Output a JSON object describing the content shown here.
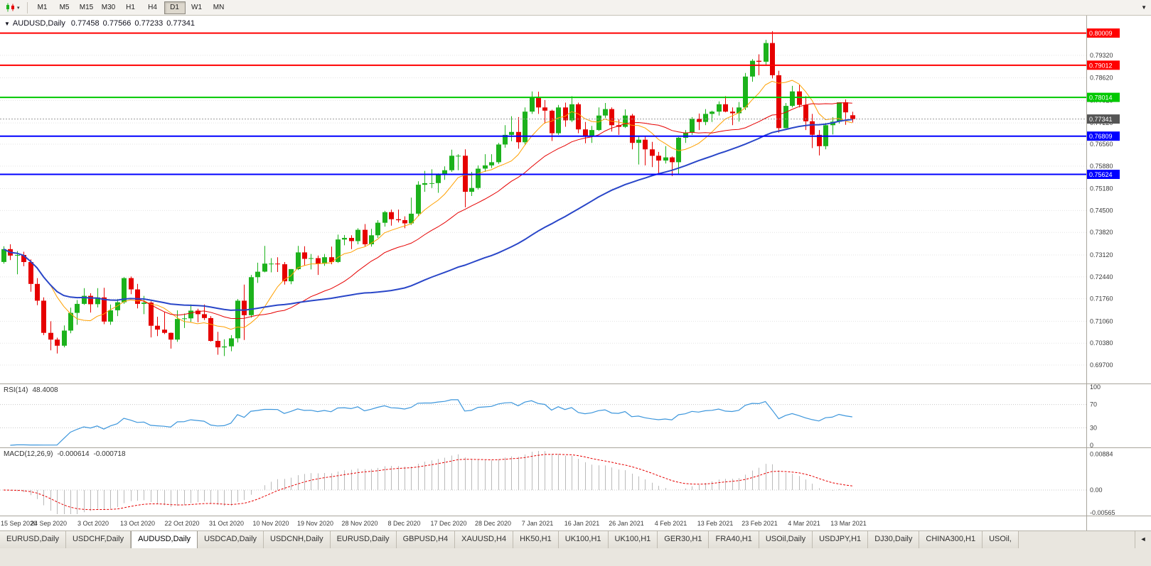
{
  "toolbar": {
    "chart_type_icon": "candlestick-chart",
    "dropdown_icon": "▾",
    "overflow_icon": "▼",
    "timeframes": [
      {
        "label": "M1",
        "active": false
      },
      {
        "label": "M5",
        "active": false
      },
      {
        "label": "M15",
        "active": false
      },
      {
        "label": "M30",
        "active": false
      },
      {
        "label": "H1",
        "active": false
      },
      {
        "label": "H4",
        "active": false
      },
      {
        "label": "D1",
        "active": true
      },
      {
        "label": "W1",
        "active": false
      },
      {
        "label": "MN",
        "active": false
      }
    ]
  },
  "chart": {
    "header": {
      "collapse_icon": "▼",
      "symbol": "AUDUSD,Daily",
      "open": "0.77458",
      "high": "0.77566",
      "low": "0.77233",
      "close": "0.77341"
    },
    "colors": {
      "up": "#1CB21C",
      "down": "#E60000",
      "grid": "#E3E3E3",
      "price_line_dots": "#9A9A9A"
    },
    "price_axis_labels": [
      "0.79320",
      "0.78620",
      "0.77920",
      "0.77220",
      "0.76560",
      "0.75880",
      "0.75180",
      "0.74500",
      "0.73820",
      "0.73120",
      "0.72440",
      "0.71760",
      "0.71060",
      "0.70380",
      "0.69700"
    ],
    "hlines": [
      {
        "price": 0.80009,
        "label": "0.80009",
        "color": "#FF0000"
      },
      {
        "price": 0.79012,
        "label": "0.79012",
        "color": "#FF0000"
      },
      {
        "price": 0.78014,
        "label": "0.78014",
        "color": "#00C800"
      },
      {
        "price": 0.76809,
        "label": "0.76809",
        "color": "#0000FF"
      },
      {
        "price": 0.75624,
        "label": "0.75624",
        "color": "#0000FF"
      }
    ],
    "current_price": {
      "label": "0.77341",
      "value": 0.77341,
      "tag_color": "#555555"
    },
    "date_labels": [
      "15 Sep 2020",
      "24 Sep 2020",
      "3 Oct 2020",
      "13 Oct 2020",
      "22 Oct 2020",
      "31 Oct 2020",
      "10 Nov 2020",
      "19 Nov 2020",
      "28 Nov 2020",
      "8 Dec 2020",
      "17 Dec 2020",
      "28 Dec 2020",
      "7 Jan 2021",
      "16 Jan 2021",
      "26 Jan 2021",
      "4 Feb 2021",
      "13 Feb 2021",
      "23 Feb 2021",
      "4 Mar 2021",
      "13 Mar 2021"
    ]
  },
  "chart_data": {
    "type": "candlestick",
    "symbol": "AUDUSD",
    "timeframe": "Daily",
    "open": [
      0.729,
      0.733,
      0.731,
      0.7312,
      0.729,
      0.7222,
      0.717,
      0.707,
      0.7049,
      0.703,
      0.7077,
      0.7132,
      0.716,
      0.7185,
      0.7159,
      0.718,
      0.7105,
      0.714,
      0.7165,
      0.724,
      0.7205,
      0.716,
      0.7164,
      0.7092,
      0.708,
      0.707,
      0.7049,
      0.7113,
      0.7115,
      0.7139,
      0.7128,
      0.7116,
      0.7045,
      0.7025,
      0.7028,
      0.7053,
      0.717,
      0.7125,
      0.7243,
      0.726,
      0.7285,
      0.7285,
      0.7283,
      0.723,
      0.7268,
      0.732,
      0.73,
      0.7302,
      0.7285,
      0.7305,
      0.729,
      0.736,
      0.7365,
      0.7355,
      0.739,
      0.7345,
      0.7373,
      0.7412,
      0.7445,
      0.7423,
      0.742,
      0.741,
      0.744,
      0.753,
      0.7535,
      0.7535,
      0.756,
      0.7575,
      0.762,
      0.762,
      0.7508,
      0.752,
      0.758,
      0.759,
      0.76,
      0.7655,
      0.7685,
      0.7694,
      0.7662,
      0.7757,
      0.78,
      0.777,
      0.776,
      0.769,
      0.777,
      0.773,
      0.778,
      0.7702,
      0.768,
      0.77,
      0.7745,
      0.7765,
      0.7715,
      0.771,
      0.7745,
      0.766,
      0.767,
      0.764,
      0.762,
      0.7605,
      0.7615,
      0.76,
      0.7676,
      0.7692,
      0.7735,
      0.7725,
      0.775,
      0.7757,
      0.778,
      0.7757,
      0.7752,
      0.777,
      0.7866,
      0.7915,
      0.7912,
      0.797,
      0.787,
      0.7706,
      0.7775,
      0.782,
      0.7778,
      0.7727,
      0.7685,
      0.765,
      0.7715,
      0.7726,
      0.7786,
      0.77458
    ],
    "high": [
      0.7339,
      0.7345,
      0.7324,
      0.7322,
      0.7298,
      0.724,
      0.718,
      0.7106,
      0.7055,
      0.7093,
      0.7148,
      0.7172,
      0.7209,
      0.7193,
      0.7209,
      0.721,
      0.7158,
      0.7175,
      0.7243,
      0.7245,
      0.7222,
      0.7185,
      0.7168,
      0.712,
      0.7135,
      0.7071,
      0.714,
      0.713,
      0.7158,
      0.7145,
      0.7158,
      0.7122,
      0.7073,
      0.705,
      0.7063,
      0.7175,
      0.722,
      0.725,
      0.7288,
      0.734,
      0.7302,
      0.7305,
      0.729,
      0.7268,
      0.734,
      0.7339,
      0.7315,
      0.731,
      0.7315,
      0.7338,
      0.7375,
      0.7374,
      0.7373,
      0.7395,
      0.7408,
      0.7393,
      0.742,
      0.7449,
      0.7453,
      0.7453,
      0.7432,
      0.749,
      0.7541,
      0.7573,
      0.7578,
      0.7565,
      0.7587,
      0.7639,
      0.7625,
      0.764,
      0.757,
      0.759,
      0.7625,
      0.7625,
      0.766,
      0.7715,
      0.7743,
      0.774,
      0.777,
      0.782,
      0.7819,
      0.7793,
      0.7763,
      0.7778,
      0.7785,
      0.7805,
      0.7785,
      0.7725,
      0.7713,
      0.777,
      0.7784,
      0.777,
      0.7733,
      0.7764,
      0.775,
      0.768,
      0.768,
      0.7663,
      0.7632,
      0.765,
      0.7618,
      0.7678,
      0.77,
      0.774,
      0.7751,
      0.7765,
      0.776,
      0.7789,
      0.7805,
      0.777,
      0.7787,
      0.7877,
      0.792,
      0.7935,
      0.798,
      0.8007,
      0.7884,
      0.7784,
      0.7837,
      0.784,
      0.7805,
      0.775,
      0.77,
      0.7722,
      0.774,
      0.7785,
      0.7795,
      0.77566
    ],
    "low": [
      0.7285,
      0.7296,
      0.7252,
      0.7277,
      0.7198,
      0.7156,
      0.7063,
      0.7016,
      0.7006,
      0.7025,
      0.7069,
      0.7095,
      0.7157,
      0.7133,
      0.7149,
      0.7097,
      0.7095,
      0.7122,
      0.716,
      0.719,
      0.7146,
      0.7128,
      0.7056,
      0.706,
      0.7066,
      0.7021,
      0.7042,
      0.7085,
      0.7104,
      0.7103,
      0.711,
      0.7043,
      0.7002,
      0.6998,
      0.7013,
      0.704,
      0.7048,
      0.7117,
      0.7225,
      0.7258,
      0.7258,
      0.7259,
      0.722,
      0.7221,
      0.7265,
      0.728,
      0.7267,
      0.725,
      0.7278,
      0.7283,
      0.7287,
      0.7342,
      0.733,
      0.7345,
      0.7339,
      0.7338,
      0.7365,
      0.74,
      0.7403,
      0.7413,
      0.7395,
      0.7405,
      0.7432,
      0.7508,
      0.752,
      0.7505,
      0.7545,
      0.757,
      0.7575,
      0.746,
      0.7495,
      0.7515,
      0.757,
      0.7582,
      0.7595,
      0.7645,
      0.7665,
      0.7642,
      0.7655,
      0.775,
      0.775,
      0.772,
      0.7666,
      0.7685,
      0.771,
      0.7725,
      0.769,
      0.7659,
      0.766,
      0.7697,
      0.7737,
      0.7695,
      0.7685,
      0.7706,
      0.764,
      0.7593,
      0.759,
      0.7585,
      0.7564,
      0.7596,
      0.7557,
      0.7562,
      0.766,
      0.7685,
      0.77,
      0.7715,
      0.7725,
      0.7745,
      0.7755,
      0.7715,
      0.7726,
      0.7762,
      0.785,
      0.787,
      0.79,
      0.786,
      0.7692,
      0.7705,
      0.777,
      0.777,
      0.77,
      0.7644,
      0.7621,
      0.764,
      0.7686,
      0.772,
      0.7716,
      0.77233
    ],
    "close": [
      0.733,
      0.731,
      0.7312,
      0.729,
      0.7222,
      0.717,
      0.707,
      0.7049,
      0.703,
      0.7077,
      0.7132,
      0.716,
      0.7185,
      0.7159,
      0.718,
      0.7105,
      0.714,
      0.7165,
      0.724,
      0.7205,
      0.716,
      0.7164,
      0.7092,
      0.708,
      0.707,
      0.7049,
      0.7113,
      0.7115,
      0.7139,
      0.7128,
      0.7116,
      0.7045,
      0.7025,
      0.7028,
      0.7053,
      0.717,
      0.7125,
      0.7243,
      0.726,
      0.7285,
      0.7285,
      0.7283,
      0.723,
      0.7268,
      0.732,
      0.73,
      0.7302,
      0.7285,
      0.7305,
      0.729,
      0.736,
      0.7365,
      0.7355,
      0.739,
      0.7345,
      0.7373,
      0.7412,
      0.7445,
      0.7423,
      0.742,
      0.741,
      0.744,
      0.753,
      0.7535,
      0.7535,
      0.756,
      0.7575,
      0.762,
      0.762,
      0.7508,
      0.752,
      0.758,
      0.759,
      0.76,
      0.7655,
      0.7685,
      0.7694,
      0.7662,
      0.7757,
      0.78,
      0.777,
      0.776,
      0.769,
      0.777,
      0.773,
      0.778,
      0.7702,
      0.768,
      0.77,
      0.7745,
      0.7765,
      0.7715,
      0.771,
      0.7745,
      0.766,
      0.767,
      0.764,
      0.762,
      0.7605,
      0.7615,
      0.76,
      0.7676,
      0.7692,
      0.7735,
      0.7725,
      0.775,
      0.7757,
      0.778,
      0.7757,
      0.7752,
      0.777,
      0.7866,
      0.7915,
      0.7912,
      0.797,
      0.787,
      0.7706,
      0.7775,
      0.782,
      0.7778,
      0.7727,
      0.7685,
      0.765,
      0.7715,
      0.7726,
      0.7786,
      0.7755,
      0.77341
    ],
    "moving_averages": [
      {
        "name": "ma-fast",
        "period": 8,
        "color": "#FFA000",
        "width": 1
      },
      {
        "name": "ma-mid",
        "period": 21,
        "color": "#E60000",
        "width": 1
      },
      {
        "name": "ma-slow",
        "period": 55,
        "color": "#2946C8",
        "width": 2
      }
    ]
  },
  "rsi": {
    "title": "RSI(14)",
    "value": "48.4008",
    "axis_labels": [
      {
        "label": "100",
        "value": 100
      },
      {
        "label": "70",
        "value": 70
      },
      {
        "label": "30",
        "value": 30
      },
      {
        "label": "0",
        "value": 0
      }
    ],
    "levels": [
      70,
      30
    ],
    "line_color": "#3C96DC"
  },
  "macd": {
    "title": "MACD(12,26,9)",
    "value_main": "-0.000614",
    "value_signal": "-0.000718",
    "axis_labels": [
      {
        "label": "0.00884",
        "value": 0.00884
      },
      {
        "label": "0.00",
        "value": 0
      },
      {
        "label": "-0.00565",
        "value": -0.00565
      }
    ],
    "hist_color": "#BABABA",
    "signal_color": "#E60000"
  },
  "tabs": {
    "scroll_left_icon": "◄",
    "items": [
      {
        "label": "EURUSD,Daily",
        "active": false
      },
      {
        "label": "USDCHF,Daily",
        "active": false
      },
      {
        "label": "AUDUSD,Daily",
        "active": true
      },
      {
        "label": "USDCAD,Daily",
        "active": false
      },
      {
        "label": "USDCNH,Daily",
        "active": false
      },
      {
        "label": "EURUSD,Daily",
        "active": false
      },
      {
        "label": "GBPUSD,H4",
        "active": false
      },
      {
        "label": "XAUUSD,H4",
        "active": false
      },
      {
        "label": "HK50,H1",
        "active": false
      },
      {
        "label": "UK100,H1",
        "active": false
      },
      {
        "label": "UK100,H1",
        "active": false
      },
      {
        "label": "GER30,H1",
        "active": false
      },
      {
        "label": "FRA40,H1",
        "active": false
      },
      {
        "label": "USOil,Daily",
        "active": false
      },
      {
        "label": "USDJPY,H1",
        "active": false
      },
      {
        "label": "DJ30,Daily",
        "active": false
      },
      {
        "label": "CHINA300,H1",
        "active": false
      },
      {
        "label": "USOil,",
        "active": false
      }
    ]
  }
}
